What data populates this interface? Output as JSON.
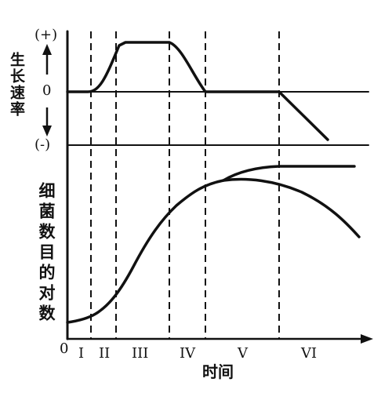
{
  "upper": {
    "plus_label": "(+)",
    "minus_label": "(-)",
    "zero_label": "0",
    "ylabel": "生长速率"
  },
  "lower": {
    "ylabel": "细菌数目的对数"
  },
  "origin_label": "0",
  "xlabel": "时间",
  "phases": [
    "I",
    "II",
    "III",
    "IV",
    "V",
    "VI"
  ],
  "colors": {
    "line": "#111111"
  }
}
